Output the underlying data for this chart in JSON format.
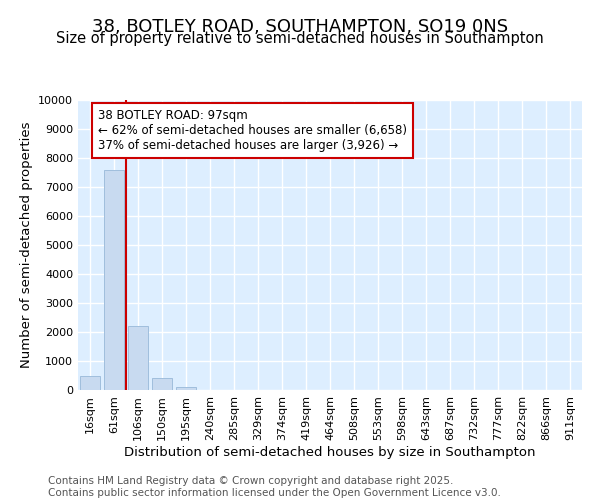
{
  "title": "38, BOTLEY ROAD, SOUTHAMPTON, SO19 0NS",
  "subtitle": "Size of property relative to semi-detached houses in Southampton",
  "xlabel": "Distribution of semi-detached houses by size in Southampton",
  "ylabel": "Number of semi-detached properties",
  "categories": [
    "16sqm",
    "61sqm",
    "106sqm",
    "150sqm",
    "195sqm",
    "240sqm",
    "285sqm",
    "329sqm",
    "374sqm",
    "419sqm",
    "464sqm",
    "508sqm",
    "553sqm",
    "598sqm",
    "643sqm",
    "687sqm",
    "732sqm",
    "777sqm",
    "822sqm",
    "866sqm",
    "911sqm"
  ],
  "values": [
    500,
    7600,
    2200,
    400,
    100,
    0,
    0,
    0,
    0,
    0,
    0,
    0,
    0,
    0,
    0,
    0,
    0,
    0,
    0,
    0,
    0
  ],
  "bar_color": "#c8daf0",
  "bar_edge_color": "#a0bedd",
  "property_line_color": "#cc0000",
  "property_line_x": 1.5,
  "annotation_line1": "38 BOTLEY ROAD: 97sqm",
  "annotation_line2": "← 62% of semi-detached houses are smaller (6,658)",
  "annotation_line3": "37% of semi-detached houses are larger (3,926) →",
  "annotation_box_color": "#ffffff",
  "annotation_box_edge_color": "#cc0000",
  "ylim": [
    0,
    10000
  ],
  "yticks": [
    0,
    1000,
    2000,
    3000,
    4000,
    5000,
    6000,
    7000,
    8000,
    9000,
    10000
  ],
  "plot_bg_color": "#ddeeff",
  "fig_bg_color": "#ffffff",
  "grid_color": "#ffffff",
  "footer_text": "Contains HM Land Registry data © Crown copyright and database right 2025.\nContains public sector information licensed under the Open Government Licence v3.0.",
  "title_fontsize": 13,
  "subtitle_fontsize": 10.5,
  "label_fontsize": 9.5,
  "tick_fontsize": 8,
  "annotation_fontsize": 8.5,
  "footer_fontsize": 7.5
}
